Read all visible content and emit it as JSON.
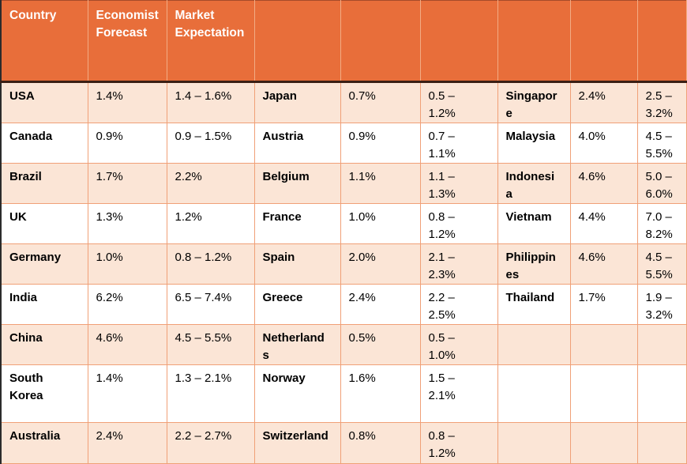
{
  "table": {
    "header": [
      "Country",
      "Economist\nForecast",
      "Market\nExpectation",
      "",
      "",
      "",
      "",
      "",
      ""
    ],
    "rows": [
      [
        "USA",
        "1.4%",
        "1.4 – 1.6%",
        "Japan",
        "0.7%",
        "0.5 –\n1.2%",
        "Singapor\ne",
        "2.4%",
        "2.5 –\n3.2%"
      ],
      [
        "Canada",
        "0.9%",
        "0.9 – 1.5%",
        "Austria",
        "0.9%",
        "0.7 –\n1.1%",
        "Malaysia",
        "4.0%",
        "4.5 –\n5.5%"
      ],
      [
        "Brazil",
        "1.7%",
        "2.2%",
        "Belgium",
        "1.1%",
        "1.1 –\n1.3%",
        "Indonesi\na",
        "4.6%",
        "5.0 –\n6.0%"
      ],
      [
        "UK",
        "1.3%",
        "1.2%",
        "France",
        "1.0%",
        "0.8 –\n1.2%",
        "Vietnam",
        "4.4%",
        "7.0 –\n8.2%"
      ],
      [
        "Germany",
        "1.0%",
        "0.8 – 1.2%",
        "Spain",
        "2.0%",
        "2.1 –\n2.3%",
        "Philippin\nes",
        "4.6%",
        "4.5 –\n5.5%"
      ],
      [
        "India",
        "6.2%",
        "6.5 – 7.4%",
        "Greece",
        "2.4%",
        "2.2 –\n2.5%",
        "Thailand",
        "1.7%",
        "1.9 –\n3.2%"
      ],
      [
        "China",
        "4.6%",
        "4.5 – 5.5%",
        "Netherland\ns",
        "0.5%",
        "0.5 –\n1.0%",
        "",
        "",
        ""
      ],
      [
        "South\nKorea",
        "1.4%",
        "1.3 – 2.1%",
        "Norway",
        "1.6%",
        "1.5 –\n2.1%",
        "",
        "",
        ""
      ],
      [
        "Australia",
        "2.4%",
        "2.2 – 2.7%",
        "Switzerland",
        "0.8%",
        "0.8 –\n1.2%",
        "",
        "",
        ""
      ]
    ]
  },
  "colors": {
    "header_bg": "#E86E3A",
    "header_text": "#FFFFFF",
    "banded_row_bg": "#FBE5D6",
    "plain_row_bg": "#FFFFFF",
    "grid_line": "#F0A077",
    "header_underline": "#3B1F14",
    "table_left_border": "#2B2B2B",
    "body_text": "#000000"
  }
}
